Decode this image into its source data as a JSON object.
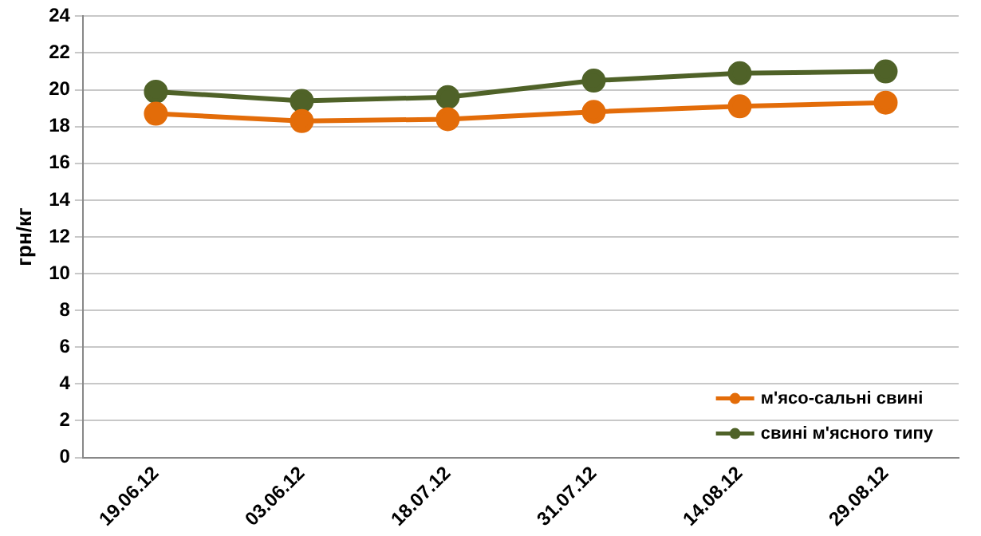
{
  "chart_data": {
    "type": "line",
    "ylabel": "грн/кг",
    "categories": [
      "19.06.12",
      "03.06.12",
      "18.07.12",
      "31.07.12",
      "14.08.12",
      "29.08.12"
    ],
    "series": [
      {
        "name": "м'ясо-сальні свині",
        "color": "#e36c09",
        "values": [
          18.7,
          18.3,
          18.4,
          18.8,
          19.1,
          19.3
        ]
      },
      {
        "name": "свині м'ясного типу",
        "color": "#4f6228",
        "values": [
          19.9,
          19.4,
          19.6,
          20.5,
          20.9,
          21.0
        ]
      }
    ],
    "ylim": [
      0,
      24
    ],
    "yticks": [
      0,
      2,
      4,
      6,
      8,
      10,
      12,
      14,
      16,
      18,
      20,
      22,
      24
    ],
    "grid": "y",
    "legend": "bottom right",
    "marker": "circle",
    "line_style": "solid"
  }
}
